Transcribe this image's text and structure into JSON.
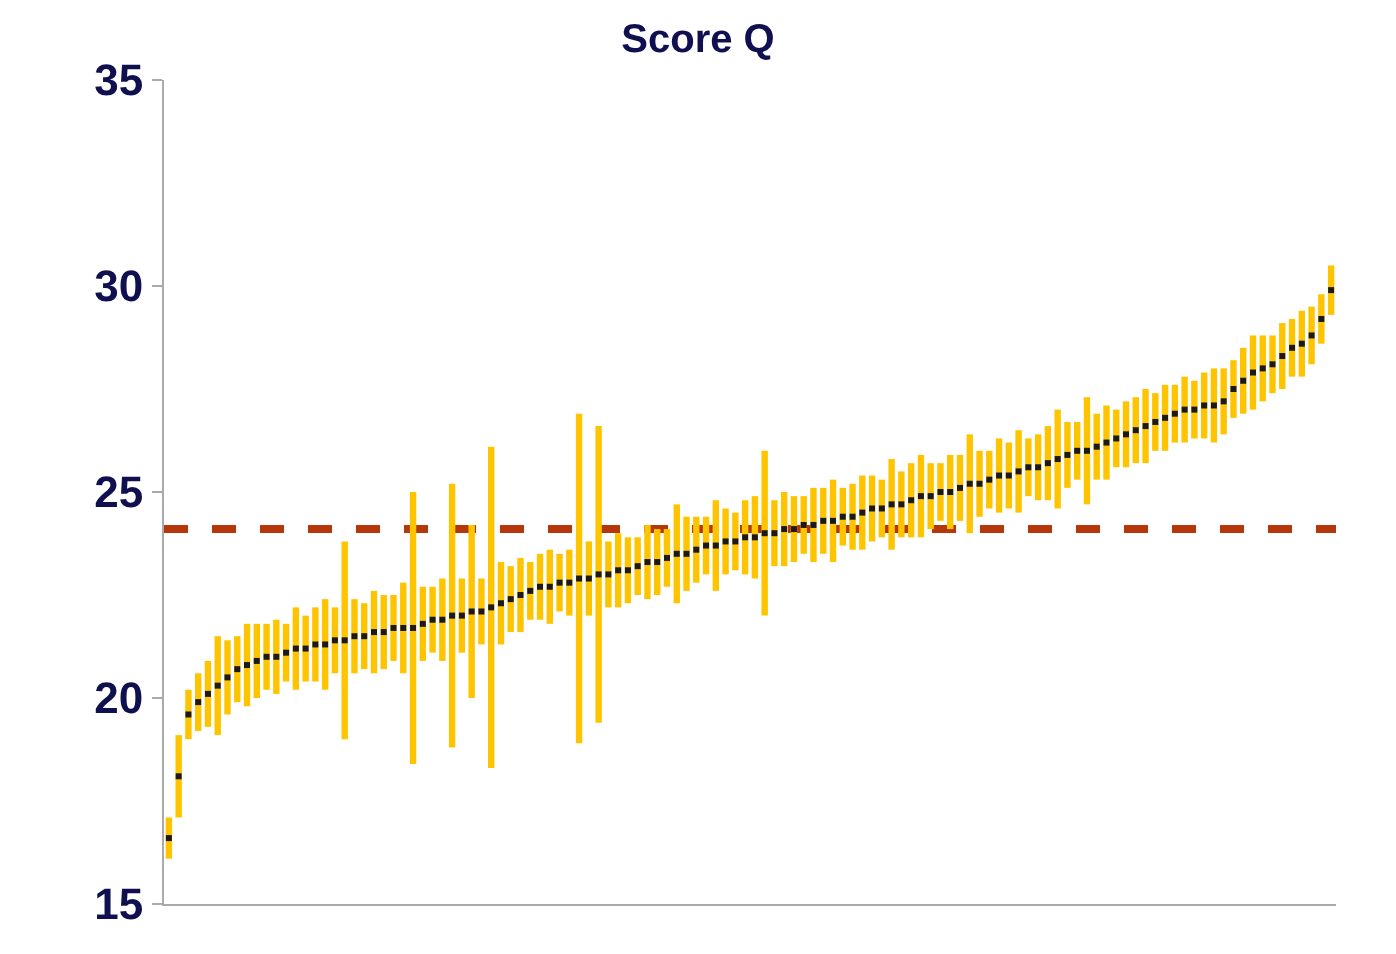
{
  "chart_data": {
    "type": "scatter",
    "title": "Score Q",
    "categories": [
      null,
      null,
      null,
      null,
      null,
      null,
      null,
      null,
      null,
      null,
      null,
      null,
      null,
      null,
      null,
      null,
      null,
      null,
      null,
      null,
      null,
      null,
      null,
      null,
      null,
      null,
      null,
      null,
      null,
      null,
      null,
      null,
      null,
      null,
      null,
      null,
      null,
      null,
      null,
      null,
      null,
      null,
      null,
      null,
      null,
      null,
      null,
      null,
      null,
      null,
      null,
      null,
      null,
      null,
      null,
      null,
      null,
      null,
      null,
      null,
      null,
      null,
      null,
      null,
      null,
      null,
      null,
      null,
      null,
      null,
      null,
      null,
      null,
      null,
      null,
      null,
      null,
      null,
      null,
      null,
      null,
      null,
      null,
      null,
      null,
      null,
      null,
      null,
      null,
      null,
      null,
      null,
      null,
      null,
      null,
      null,
      null,
      null,
      null,
      null,
      null,
      null,
      null,
      null,
      null,
      null,
      null,
      null,
      null,
      null,
      null,
      null,
      null,
      null,
      null,
      null,
      null,
      null,
      null,
      null
    ],
    "series": [
      {
        "color": "#1a1a1a",
        "values": [
          16.6,
          18.1,
          19.6,
          19.9,
          20.1,
          20.3,
          20.5,
          20.7,
          20.8,
          20.9,
          21.0,
          21.0,
          21.1,
          21.2,
          21.2,
          21.3,
          21.3,
          21.4,
          21.4,
          21.5,
          21.5,
          21.6,
          21.6,
          21.7,
          21.7,
          21.7,
          21.8,
          21.9,
          21.9,
          22.0,
          22.0,
          22.1,
          22.1,
          22.2,
          22.3,
          22.4,
          22.5,
          22.6,
          22.7,
          22.7,
          22.8,
          22.8,
          22.9,
          22.9,
          23.0,
          23.0,
          23.1,
          23.1,
          23.2,
          23.3,
          23.3,
          23.4,
          23.5,
          23.5,
          23.6,
          23.7,
          23.7,
          23.8,
          23.8,
          23.9,
          23.9,
          24.0,
          24.0,
          24.1,
          24.1,
          24.2,
          24.2,
          24.3,
          24.3,
          24.4,
          24.4,
          24.5,
          24.6,
          24.6,
          24.7,
          24.7,
          24.8,
          24.9,
          24.9,
          25.0,
          25.0,
          25.1,
          25.2,
          25.2,
          25.3,
          25.4,
          25.4,
          25.5,
          25.6,
          25.6,
          25.7,
          25.8,
          25.9,
          26.0,
          26.0,
          26.1,
          26.2,
          26.3,
          26.4,
          26.5,
          26.6,
          26.7,
          26.8,
          26.9,
          27.0,
          27.0,
          27.1,
          27.1,
          27.2,
          27.5,
          27.7,
          27.9,
          28.0,
          28.1,
          28.3,
          28.5,
          28.6,
          28.8,
          29.2,
          29.9
        ],
        "errors": [
          0.5,
          1.0,
          0.6,
          0.7,
          0.8,
          1.2,
          0.9,
          0.8,
          1.0,
          0.9,
          0.8,
          0.9,
          0.7,
          1.0,
          0.8,
          0.9,
          1.1,
          0.8,
          2.4,
          0.9,
          0.8,
          1.0,
          0.9,
          0.8,
          1.1,
          3.3,
          0.9,
          0.8,
          1.0,
          3.2,
          0.9,
          2.1,
          0.8,
          3.9,
          1.0,
          0.8,
          0.9,
          0.7,
          0.8,
          0.9,
          0.7,
          0.8,
          4.0,
          0.9,
          3.6,
          0.8,
          0.9,
          0.8,
          0.7,
          0.9,
          0.8,
          0.7,
          1.2,
          0.9,
          0.8,
          0.7,
          1.1,
          0.8,
          0.7,
          0.9,
          1.0,
          2.0,
          0.8,
          0.9,
          0.8,
          0.7,
          0.9,
          0.8,
          1.0,
          0.7,
          0.8,
          0.9,
          0.8,
          0.7,
          1.1,
          0.8,
          0.9,
          1.0,
          0.8,
          0.7,
          0.9,
          0.8,
          1.2,
          0.8,
          0.7,
          0.9,
          0.8,
          1.0,
          0.7,
          0.8,
          0.9,
          1.2,
          0.8,
          0.7,
          1.3,
          0.8,
          0.9,
          0.7,
          0.8,
          0.8,
          0.9,
          0.7,
          0.8,
          0.7,
          0.8,
          0.7,
          0.8,
          0.9,
          0.8,
          0.7,
          0.8,
          0.9,
          0.8,
          0.7,
          0.8,
          0.7,
          0.8,
          0.7,
          0.6,
          0.6
        ]
      }
    ],
    "ylim": [
      15,
      35
    ],
    "yticks": [
      15,
      20,
      25,
      30,
      35
    ],
    "tick_labels": "y",
    "grid": false,
    "marker": "square",
    "ref_lines": [
      {
        "axis": "y",
        "value": 24.1,
        "color": "#b5380c",
        "line_style": "dashed"
      }
    ]
  }
}
